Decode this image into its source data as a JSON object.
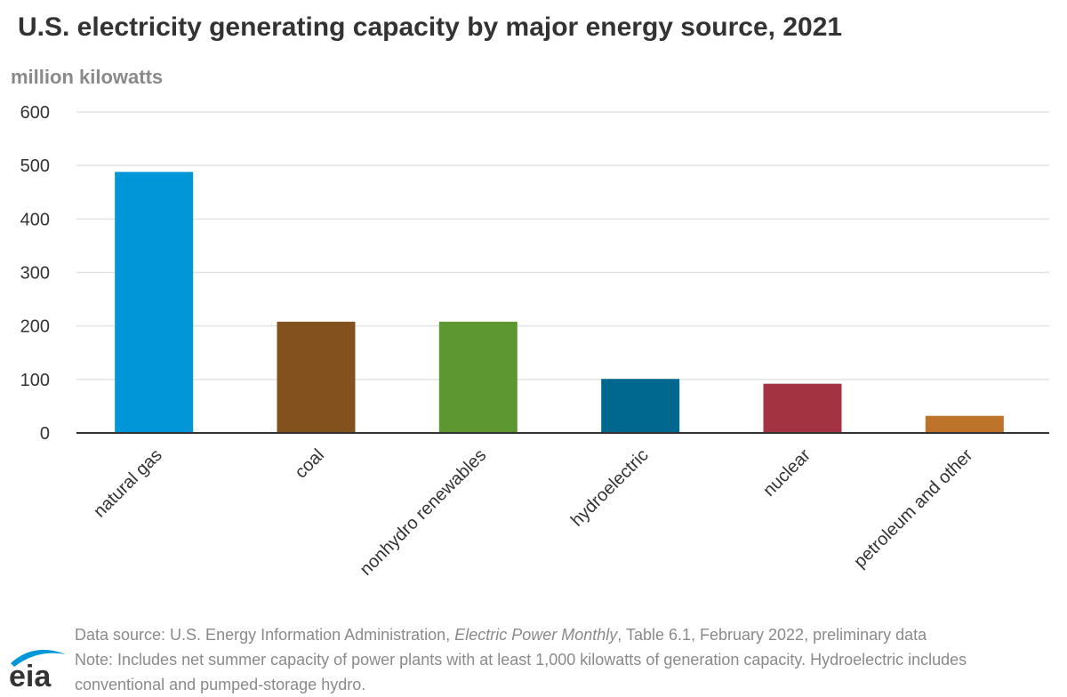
{
  "chart_data": {
    "type": "bar",
    "title": "U.S. electricity generating capacity by major energy source, 2021",
    "ylabel": "million kilowatts",
    "xlabel": "",
    "categories": [
      "natural gas",
      "coal",
      "nonhydro renewables",
      "hydroelectric",
      "nuclear",
      "petroleum and other"
    ],
    "values": [
      488,
      208,
      208,
      101,
      92,
      32
    ],
    "colors": [
      "#0096d7",
      "#83511e",
      "#5d9732",
      "#00678f",
      "#a33340",
      "#bd732a"
    ],
    "ylim": [
      0,
      600
    ],
    "yticks": [
      0,
      100,
      200,
      300,
      400,
      500,
      600
    ],
    "grid": true,
    "legend": "none",
    "tick_label_rotation": "-45 degrees"
  },
  "footer": {
    "source_prefix": "Data source: U.S. Energy Information Administration, ",
    "source_publication": "Electric Power Monthly",
    "source_suffix": ", Table 6.1, February 2022, preliminary data",
    "note_line1": "Note: Includes net summer capacity of power plants with at least 1,000 kilowatts of generation capacity. Hydroelectric includes",
    "note_line2": "conventional and pumped-storage hydro."
  },
  "logo": {
    "text": "eia",
    "arc_color": "#0096d7"
  }
}
